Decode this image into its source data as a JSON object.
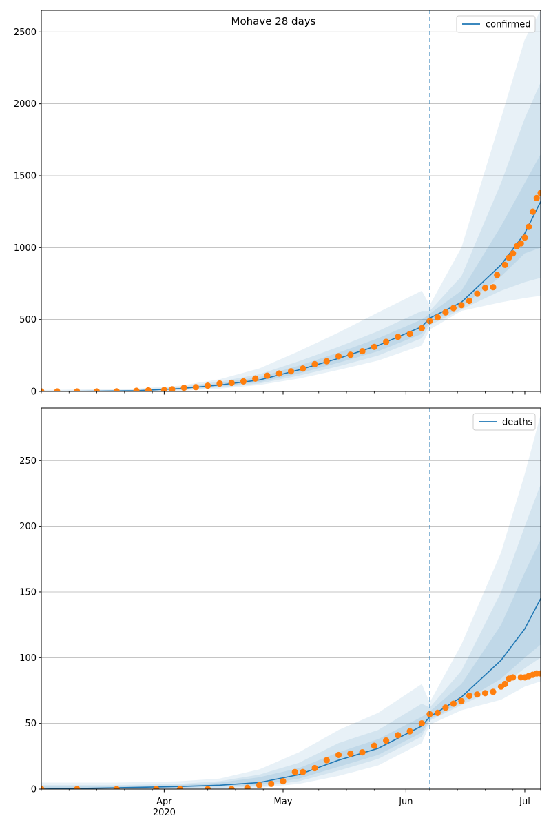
{
  "colors": {
    "fit_line": "#1f77b4",
    "band": "#1f77b4",
    "observed": "#ff7f0e",
    "grid": "#b0b0b0",
    "cutoff_line": "#1f77b4"
  },
  "chart_data": [
    {
      "type": "line",
      "title": "Mohave 28 days",
      "legend": {
        "entries": [
          "confirmed"
        ],
        "placement": "top-right"
      },
      "grid": "horizontal",
      "xlabel": "",
      "ylabel": "",
      "x_start": "2020-03-01",
      "x_end": "2020-07-05",
      "ylim": [
        0,
        2650
      ],
      "y_ticks": [
        0,
        500,
        1000,
        1500,
        2000,
        2500
      ],
      "cutoff_date": "2020-06-07",
      "x_axis_labels": [],
      "fit_series": {
        "name": "confirmed",
        "dates": [
          "2020-03-01",
          "2020-03-15",
          "2020-03-25",
          "2020-04-05",
          "2020-04-15",
          "2020-04-25",
          "2020-05-05",
          "2020-05-15",
          "2020-05-25",
          "2020-06-05",
          "2020-06-07",
          "2020-06-15",
          "2020-06-25",
          "2020-07-01",
          "2020-07-05"
        ],
        "values": [
          0,
          2,
          5,
          20,
          45,
          80,
          150,
          230,
          320,
          450,
          510,
          620,
          880,
          1100,
          1320
        ]
      },
      "bands": [
        {
          "dates": [
            "2020-03-01",
            "2020-03-15",
            "2020-03-25",
            "2020-04-05",
            "2020-04-15",
            "2020-04-25",
            "2020-05-05",
            "2020-05-15",
            "2020-05-25",
            "2020-06-05",
            "2020-06-07",
            "2020-06-15",
            "2020-06-25",
            "2020-07-01",
            "2020-07-05"
          ],
          "lower": [
            0,
            0,
            0,
            5,
            20,
            45,
            90,
            150,
            215,
            320,
            430,
            560,
            620,
            650,
            665
          ],
          "upper": [
            10,
            15,
            20,
            40,
            85,
            160,
            280,
            410,
            550,
            700,
            600,
            1000,
            1900,
            2450,
            2650
          ]
        },
        {
          "dates": [
            "2020-03-01",
            "2020-03-15",
            "2020-03-25",
            "2020-04-05",
            "2020-04-15",
            "2020-04-25",
            "2020-05-05",
            "2020-05-15",
            "2020-05-25",
            "2020-06-05",
            "2020-06-07",
            "2020-06-15",
            "2020-06-25",
            "2020-07-01",
            "2020-07-05"
          ],
          "lower": [
            0,
            0,
            2,
            10,
            28,
            55,
            110,
            175,
            250,
            370,
            460,
            570,
            700,
            760,
            790
          ],
          "upper": [
            5,
            8,
            12,
            32,
            68,
            120,
            210,
            310,
            420,
            560,
            560,
            800,
            1450,
            1900,
            2150
          ]
        },
        {
          "dates": [
            "2020-03-01",
            "2020-03-15",
            "2020-03-25",
            "2020-04-05",
            "2020-04-15",
            "2020-04-25",
            "2020-05-05",
            "2020-05-15",
            "2020-05-25",
            "2020-06-05",
            "2020-06-07",
            "2020-06-15",
            "2020-06-25",
            "2020-07-01",
            "2020-07-05"
          ],
          "lower": [
            0,
            1,
            3,
            14,
            35,
            65,
            125,
            200,
            280,
            400,
            480,
            590,
            800,
            960,
            1000
          ],
          "upper": [
            3,
            5,
            9,
            26,
            58,
            100,
            180,
            270,
            370,
            500,
            540,
            700,
            1150,
            1450,
            1650
          ]
        }
      ],
      "observed": {
        "dates": [
          "2020-03-01",
          "2020-03-05",
          "2020-03-10",
          "2020-03-15",
          "2020-03-20",
          "2020-03-25",
          "2020-03-28",
          "2020-04-01",
          "2020-04-03",
          "2020-04-06",
          "2020-04-09",
          "2020-04-12",
          "2020-04-15",
          "2020-04-18",
          "2020-04-21",
          "2020-04-24",
          "2020-04-27",
          "2020-04-30",
          "2020-05-03",
          "2020-05-06",
          "2020-05-09",
          "2020-05-12",
          "2020-05-15",
          "2020-05-18",
          "2020-05-21",
          "2020-05-24",
          "2020-05-27",
          "2020-05-30",
          "2020-06-02",
          "2020-06-05",
          "2020-06-07",
          "2020-06-09",
          "2020-06-11",
          "2020-06-13",
          "2020-06-15",
          "2020-06-17",
          "2020-06-19",
          "2020-06-21",
          "2020-06-23",
          "2020-06-24",
          "2020-06-26",
          "2020-06-27",
          "2020-06-28",
          "2020-06-29",
          "2020-06-30",
          "2020-07-01",
          "2020-07-02",
          "2020-07-03",
          "2020-07-04",
          "2020-07-05"
        ],
        "values": [
          0,
          0,
          0,
          0,
          1,
          5,
          8,
          10,
          15,
          25,
          30,
          40,
          55,
          60,
          70,
          90,
          110,
          125,
          140,
          160,
          190,
          210,
          245,
          255,
          280,
          310,
          345,
          380,
          400,
          440,
          490,
          515,
          550,
          580,
          600,
          630,
          680,
          720,
          725,
          810,
          880,
          930,
          960,
          1010,
          1030,
          1070,
          1145,
          1250,
          1345,
          1380
        ]
      }
    },
    {
      "type": "line",
      "title": "",
      "legend": {
        "entries": [
          "deaths"
        ],
        "placement": "top-right"
      },
      "grid": "horizontal",
      "xlabel": "",
      "ylabel": "",
      "x_start": "2020-03-01",
      "x_end": "2020-07-05",
      "ylim": [
        0,
        290
      ],
      "y_ticks": [
        0,
        50,
        100,
        150,
        200,
        250
      ],
      "cutoff_date": "2020-06-07",
      "x_axis_labels": [
        {
          "date": "2020-04-01",
          "line1": "Apr",
          "line2": "2020"
        },
        {
          "date": "2020-05-01",
          "line1": "May",
          "line2": ""
        },
        {
          "date": "2020-06-01",
          "line1": "Jun",
          "line2": ""
        },
        {
          "date": "2020-07-01",
          "line1": "Jul",
          "line2": ""
        }
      ],
      "fit_series": {
        "name": "deaths",
        "dates": [
          "2020-03-01",
          "2020-03-20",
          "2020-04-05",
          "2020-04-15",
          "2020-04-25",
          "2020-05-05",
          "2020-05-15",
          "2020-05-25",
          "2020-06-05",
          "2020-06-07",
          "2020-06-15",
          "2020-06-25",
          "2020-07-01",
          "2020-07-05"
        ],
        "values": [
          0,
          1,
          2,
          3,
          5,
          11,
          22,
          31,
          48,
          55,
          70,
          98,
          122,
          145
        ]
      },
      "bands": [
        {
          "dates": [
            "2020-03-01",
            "2020-03-20",
            "2020-04-05",
            "2020-04-15",
            "2020-04-25",
            "2020-05-05",
            "2020-05-15",
            "2020-05-25",
            "2020-06-05",
            "2020-06-07",
            "2020-06-15",
            "2020-06-25",
            "2020-07-01",
            "2020-07-05"
          ],
          "lower": [
            0,
            0,
            0,
            0,
            1,
            4,
            10,
            18,
            35,
            49,
            60,
            68,
            78,
            82
          ],
          "upper": [
            5,
            5,
            6,
            8,
            15,
            28,
            45,
            58,
            80,
            66,
            110,
            180,
            240,
            285
          ]
        },
        {
          "dates": [
            "2020-03-01",
            "2020-03-20",
            "2020-04-05",
            "2020-04-15",
            "2020-04-25",
            "2020-05-05",
            "2020-05-15",
            "2020-05-25",
            "2020-06-05",
            "2020-06-07",
            "2020-06-15",
            "2020-06-25",
            "2020-07-01",
            "2020-07-05"
          ],
          "lower": [
            0,
            0,
            1,
            1,
            2,
            6,
            14,
            23,
            40,
            52,
            64,
            78,
            92,
            100
          ],
          "upper": [
            3,
            3,
            4,
            6,
            11,
            20,
            35,
            45,
            65,
            62,
            90,
            150,
            200,
            232
          ]
        },
        {
          "dates": [
            "2020-03-01",
            "2020-03-20",
            "2020-04-05",
            "2020-04-15",
            "2020-04-25",
            "2020-05-05",
            "2020-05-15",
            "2020-05-25",
            "2020-06-05",
            "2020-06-07",
            "2020-06-15",
            "2020-06-25",
            "2020-07-01",
            "2020-07-05"
          ],
          "lower": [
            0,
            0,
            1,
            2,
            3,
            8,
            17,
            26,
            43,
            53,
            66,
            84,
            100,
            110
          ],
          "upper": [
            2,
            2,
            3,
            5,
            9,
            16,
            28,
            38,
            55,
            59,
            80,
            125,
            165,
            190
          ]
        }
      ],
      "observed": {
        "dates": [
          "2020-03-01",
          "2020-03-10",
          "2020-03-20",
          "2020-03-30",
          "2020-04-05",
          "2020-04-12",
          "2020-04-18",
          "2020-04-22",
          "2020-04-25",
          "2020-04-28",
          "2020-05-01",
          "2020-05-04",
          "2020-05-06",
          "2020-05-09",
          "2020-05-12",
          "2020-05-15",
          "2020-05-18",
          "2020-05-21",
          "2020-05-24",
          "2020-05-27",
          "2020-05-30",
          "2020-06-02",
          "2020-06-05",
          "2020-06-07",
          "2020-06-09",
          "2020-06-11",
          "2020-06-13",
          "2020-06-15",
          "2020-06-17",
          "2020-06-19",
          "2020-06-21",
          "2020-06-23",
          "2020-06-25",
          "2020-06-26",
          "2020-06-27",
          "2020-06-28",
          "2020-06-30",
          "2020-07-01",
          "2020-07-02",
          "2020-07-03",
          "2020-07-04",
          "2020-07-05"
        ],
        "values": [
          0,
          0,
          0,
          0,
          0,
          0,
          0,
          1,
          3,
          4,
          6,
          13,
          13,
          16,
          22,
          26,
          27,
          28,
          33,
          37,
          41,
          44,
          50,
          57,
          58,
          62,
          65,
          67,
          71,
          72,
          73,
          74,
          78,
          80,
          84,
          85,
          85,
          85,
          86,
          87,
          88,
          88
        ]
      }
    }
  ]
}
